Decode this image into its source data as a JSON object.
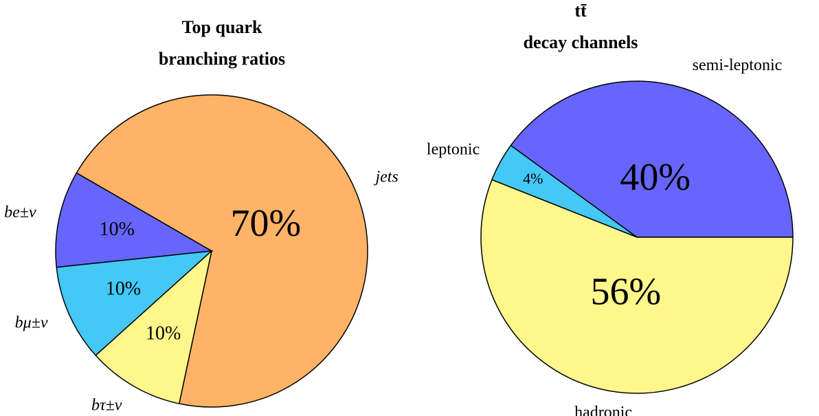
{
  "chart_data": [
    {
      "type": "pie",
      "title": [
        "Top quark",
        "branching ratios"
      ],
      "categories": [
        "jets",
        "be±ν",
        "bμ±ν",
        "bτ±ν"
      ],
      "values": [
        70,
        10,
        10,
        10
      ],
      "value_labels": [
        "70%",
        "10%",
        "10%",
        "10%"
      ],
      "colors": [
        "#ffb366",
        "#6666ff",
        "#44c8f5",
        "#fff68c"
      ]
    },
    {
      "type": "pie",
      "title": [
        "tt̄",
        "decay channels"
      ],
      "categories": [
        "semi-leptonic",
        "leptonic",
        "hadronic"
      ],
      "values": [
        40,
        4,
        56
      ],
      "value_labels": [
        "40%",
        "4%",
        "56%"
      ],
      "colors": [
        "#6666ff",
        "#44c8f5",
        "#fff68c"
      ]
    }
  ]
}
